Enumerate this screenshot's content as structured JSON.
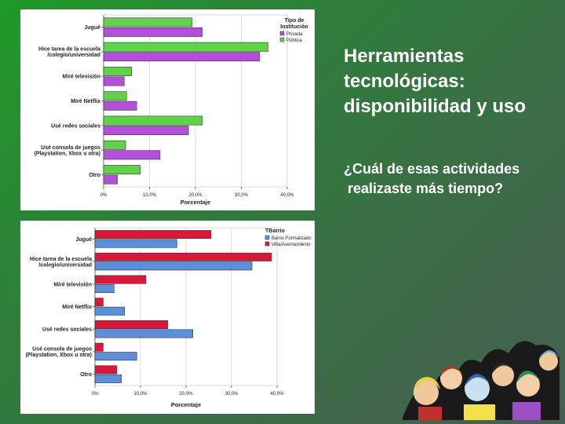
{
  "slide": {
    "title_lines": [
      "Herramientas",
      "tecnológicas:",
      "disponibilidad y uso"
    ],
    "question_lines": [
      "¿Cuál de esas actividades",
      " realizaste más tiempo?"
    ]
  },
  "chart_data": [
    {
      "type": "bar",
      "orientation": "horizontal",
      "categories": [
        "Jugué",
        "Hice tarea de la escuela\n/colegio/universidad",
        "Miré televisión",
        "Miré Netflix",
        "Usé redes sociales",
        "Usé consola de juegos\n(Playstation, Xbox u otra)",
        "Otro"
      ],
      "series": [
        {
          "name": "Privada",
          "color": "#b44fdb",
          "values": [
            21.5,
            34.0,
            4.5,
            7.2,
            18.5,
            12.3,
            3.0
          ]
        },
        {
          "name": "Pública",
          "color": "#5fd24a",
          "values": [
            19.3,
            35.8,
            6.1,
            5.0,
            21.5,
            4.8,
            8.0
          ]
        }
      ],
      "draw_order": [
        1,
        0
      ],
      "legend_title": "Tipo de\nInstitución",
      "legend_position": "top-right",
      "xlabel": "Porcentaje",
      "xlim": [
        0,
        40
      ],
      "xticks": [
        "0%",
        "10,0%",
        "20,0%",
        "30,0%",
        "40,0%"
      ],
      "grid": true
    },
    {
      "type": "bar",
      "orientation": "horizontal",
      "categories": [
        "Jugué",
        "Hice tarea de la escuela\n/colegio/universidad",
        "Miré televisión",
        "Miré Netflix",
        "Usé redes sociales",
        "Usé consola de juegos\n(Playstation, Xbox u otra)",
        "Otro"
      ],
      "series": [
        {
          "name": "Barrio Formalizado",
          "color": "#5b8fdc",
          "values": [
            18.0,
            34.5,
            4.2,
            6.5,
            21.5,
            9.2,
            5.8
          ]
        },
        {
          "name": "Villa/Asentamiento",
          "color": "#d9173b",
          "values": [
            25.5,
            38.8,
            11.2,
            1.8,
            16.0,
            1.8,
            4.8
          ]
        }
      ],
      "draw_order": [
        1,
        0
      ],
      "legend_title": "TBarrio",
      "legend_position": "top-right",
      "xlabel": "Porcentaje",
      "xlim": [
        0,
        40
      ],
      "xticks": [
        "0%",
        "10,0%",
        "20,0%",
        "30,0%",
        "40,0%"
      ],
      "grid": true
    }
  ]
}
